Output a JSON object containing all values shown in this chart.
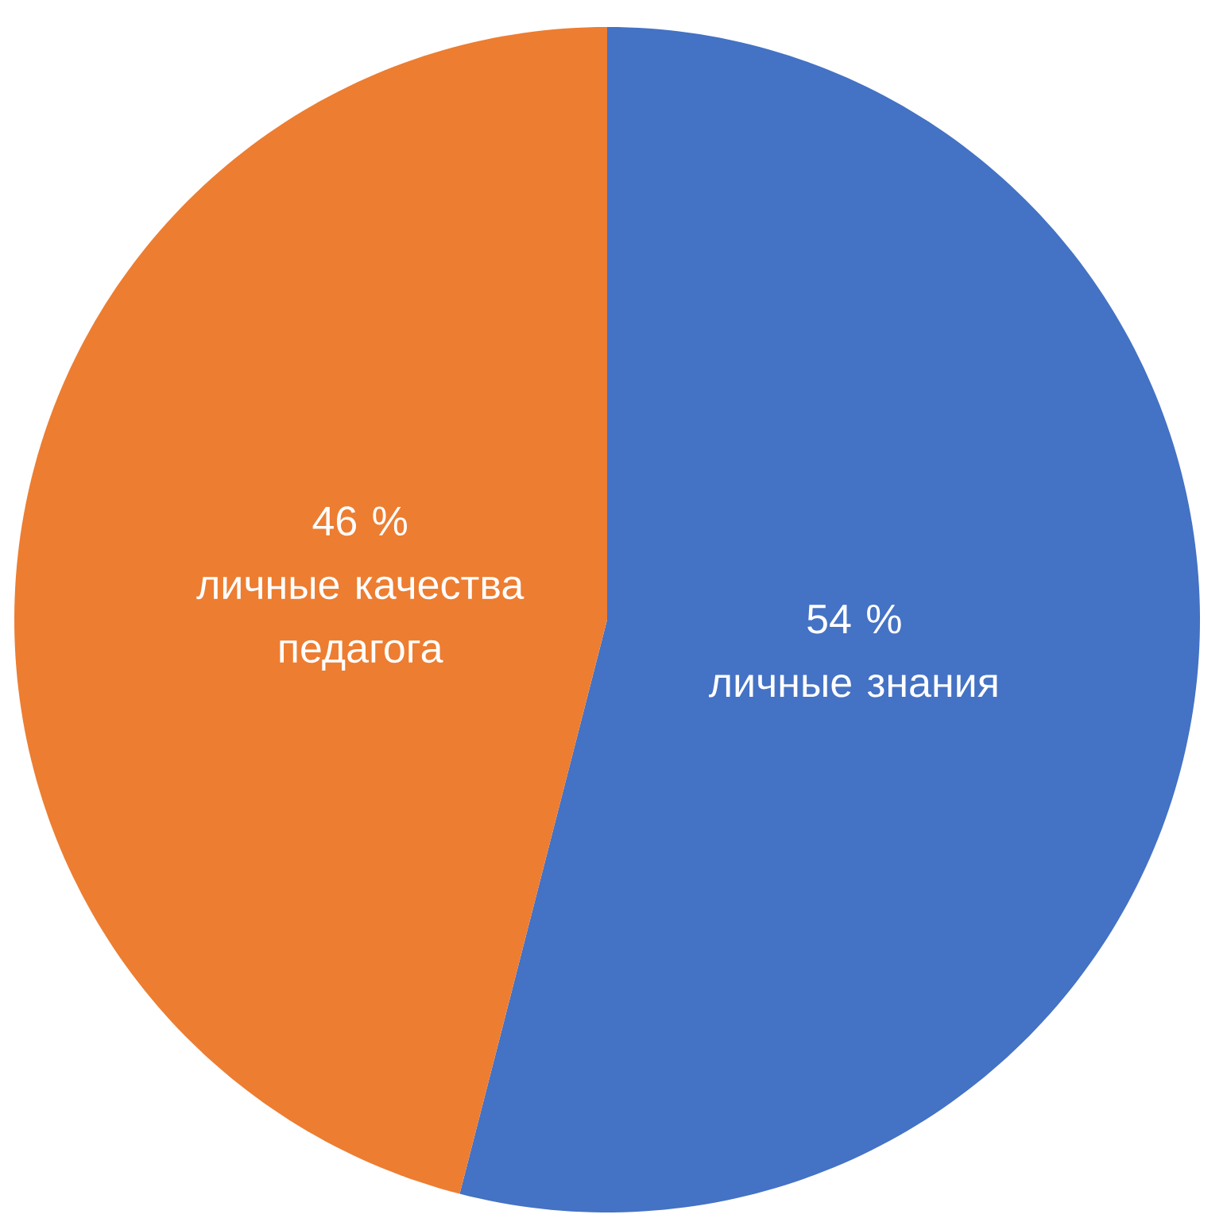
{
  "chart_data": {
    "type": "pie",
    "categories": [
      "личные знания",
      "личные качества педагога"
    ],
    "values": [
      54,
      46
    ],
    "value_labels": [
      "54 %",
      "46 %"
    ],
    "colors": [
      "#4472c4",
      "#ed7d31"
    ]
  }
}
